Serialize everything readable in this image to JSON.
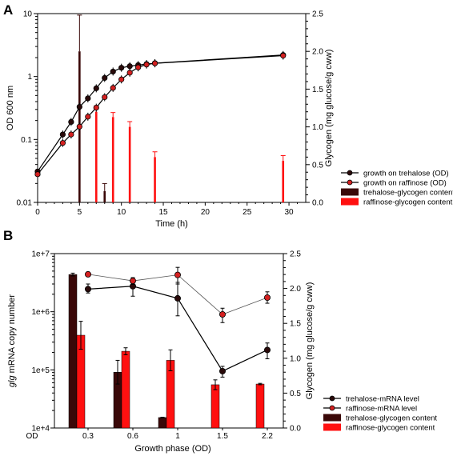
{
  "chart_data": [
    {
      "panel": "A",
      "type": "line",
      "xlabel": "Time (h)",
      "ylabel": "OD 600 nm",
      "y2label": "Glycogen (mg glucose/g cww)",
      "xlim": [
        0,
        32
      ],
      "ylim": [
        0.01,
        10
      ],
      "yscale": "log",
      "y2lim": [
        0,
        2.5
      ],
      "xticks": [
        "0",
        "5",
        "10",
        "15",
        "20",
        "25",
        "30"
      ],
      "yticks": [
        "0.01",
        "0.1",
        "1",
        "10"
      ],
      "y2ticks": [
        "0.0",
        "0.5",
        "1.0",
        "1.5",
        "2.0",
        "2.5"
      ],
      "legend_position": "bottom-right",
      "line_series": [
        {
          "name": "growth on trehalose (OD)",
          "color": "#2a0a0a",
          "x": [
            0,
            3,
            4,
            5,
            6,
            7,
            8,
            9,
            10,
            11,
            12,
            13,
            14,
            29.3
          ],
          "y": [
            0.031,
            0.12,
            0.19,
            0.33,
            0.45,
            0.65,
            0.95,
            1.2,
            1.38,
            1.46,
            1.52,
            1.58,
            1.63,
            2.2
          ]
        },
        {
          "name": "growth on raffinose (OD)",
          "color": "#d42020",
          "x": [
            0,
            3,
            4,
            5,
            6,
            7,
            8,
            9,
            10,
            11,
            12,
            13,
            14,
            29.3
          ],
          "y": [
            0.028,
            0.088,
            0.12,
            0.16,
            0.23,
            0.32,
            0.47,
            0.66,
            0.9,
            1.15,
            1.4,
            1.55,
            1.62,
            2.15
          ]
        }
      ],
      "bar_series": [
        {
          "name": "trehalose-glycogen content",
          "color": "#3a0808",
          "x": [
            5,
            8
          ],
          "values": [
            2.0,
            0.15
          ],
          "errors": [
            0.48,
            0.1
          ]
        },
        {
          "name": "raffinose-glycogen content",
          "color": "#ff1010",
          "x": [
            7,
            9,
            11,
            14,
            29.3
          ],
          "values": [
            1.2,
            1.13,
            1.0,
            0.6,
            0.55
          ],
          "errors": [
            0.08,
            0.06,
            0.07,
            0.07,
            0.07
          ]
        }
      ]
    },
    {
      "panel": "B",
      "type": "bar",
      "xlabel": "Growth phase (OD)",
      "ylabel_italic": "glg",
      "ylabel_rest": " mRNA copy number",
      "y2label": "Glycogen (mg glucose/g cww)",
      "categories": [
        "0.3",
        "0.6",
        "1",
        "1.5",
        "2.2"
      ],
      "x_prefix": "OD",
      "ylim": [
        10000,
        10000000
      ],
      "yscale": "log",
      "y2lim": [
        0,
        2.5
      ],
      "yticks": [
        "1e+4",
        "1e+5",
        "1e+6",
        "1e+7"
      ],
      "y2ticks": [
        "0.0",
        "0.5",
        "1.0",
        "1.5",
        "2.0",
        "2.5"
      ],
      "legend_position": "bottom-right",
      "line_series": [
        {
          "name": "trehalose-mRNA level",
          "color": "#2a0a0a",
          "values": [
            2450000,
            2750000,
            1700000,
            95000,
            220000
          ],
          "errors_low": [
            350000,
            900000,
            850000,
            20000,
            65000
          ],
          "errors_high": [
            550000,
            1100000,
            1500000,
            20000,
            70000
          ]
        },
        {
          "name": "raffinose-mRNA level",
          "color": "#d42020",
          "values": [
            4400000,
            3400000,
            4300000,
            900000,
            1750000
          ],
          "errors_low": [
            300000,
            450000,
            1300000,
            250000,
            350000
          ],
          "errors_high": [
            300000,
            450000,
            1500000,
            250000,
            450000
          ]
        }
      ],
      "bar_series": [
        {
          "name": "trehalose-glycogen content",
          "color": "#3a0808",
          "values": [
            2.2,
            0.8,
            0.15,
            0,
            0
          ],
          "errors": [
            0.02,
            0.17,
            0.005,
            0,
            0
          ]
        },
        {
          "name": "raffinose-glycogen content",
          "color": "#ff1010",
          "values": [
            1.33,
            1.1,
            0.97,
            0.62,
            0.63
          ],
          "errors": [
            0.2,
            0.05,
            0.15,
            0.07,
            0.01
          ]
        }
      ]
    }
  ]
}
